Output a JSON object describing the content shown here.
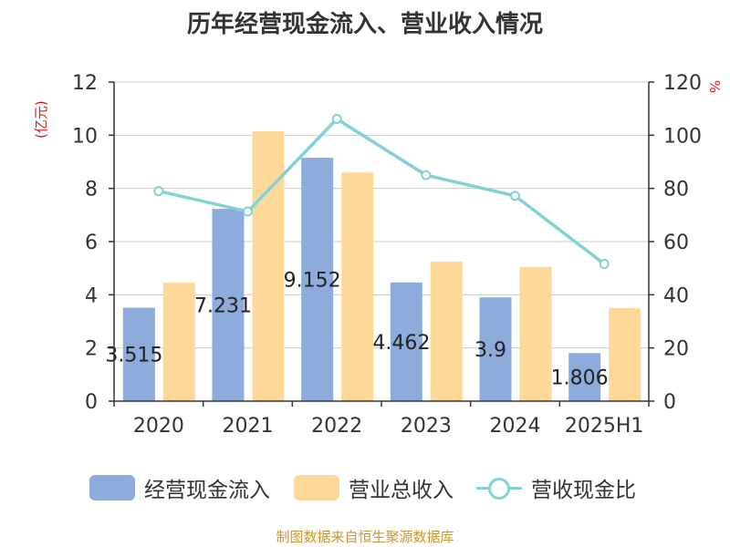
{
  "title": "历年经营现金流入、营业收入情况",
  "source": "制图数据来自恒生聚源数据库",
  "chart_data": {
    "type": "bar",
    "title": "历年经营现金流入、营业收入情况",
    "categories": [
      "2020",
      "2021",
      "2022",
      "2023",
      "2024",
      "2025H1"
    ],
    "y_left": {
      "unit": "(亿元)",
      "range": [
        0,
        12
      ],
      "ticks": [
        0,
        2,
        4,
        6,
        8,
        10,
        12
      ]
    },
    "y_right": {
      "unit": "%",
      "range": [
        0,
        120
      ],
      "ticks": [
        0,
        20,
        40,
        60,
        80,
        100,
        120
      ]
    },
    "grid": true,
    "legend_position": "bottom",
    "series": [
      {
        "name": "经营现金流入",
        "type": "bar",
        "axis": "left",
        "color": "#8eacdb",
        "values": [
          3.515,
          7.231,
          9.152,
          4.462,
          3.9,
          1.806
        ],
        "data_labels": [
          "3.515",
          "7.231",
          "9.152",
          "4.462",
          "3.9",
          "1.806"
        ]
      },
      {
        "name": "营业总收入",
        "type": "bar",
        "axis": "left",
        "color": "#fed898",
        "values": [
          4.45,
          10.15,
          8.6,
          5.25,
          5.05,
          3.5
        ]
      },
      {
        "name": "营收现金比",
        "type": "line",
        "axis": "right",
        "color": "#82d2d4",
        "values": [
          79,
          71.3,
          106.1,
          85,
          77.2,
          51.6
        ]
      }
    ]
  }
}
